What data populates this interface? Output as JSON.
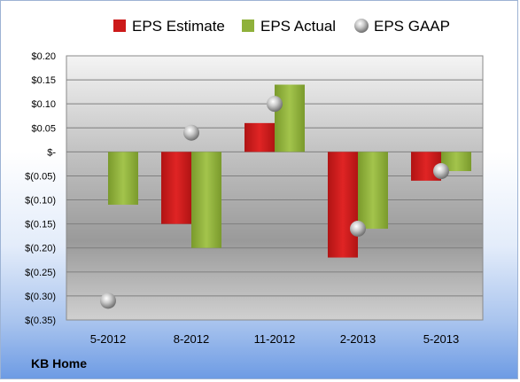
{
  "company": "KB Home",
  "chart_data": {
    "type": "bar",
    "categories": [
      "5-2012",
      "8-2012",
      "11-2012",
      "2-2013",
      "5-2013"
    ],
    "series": [
      {
        "name": "EPS Estimate",
        "kind": "bar",
        "color": "#cc1a1a",
        "values": [
          null,
          -0.15,
          0.06,
          -0.22,
          -0.06
        ]
      },
      {
        "name": "EPS Actual",
        "kind": "bar",
        "color": "#8fb13b",
        "values": [
          -0.11,
          -0.2,
          0.14,
          -0.16,
          -0.04
        ]
      },
      {
        "name": "EPS GAAP",
        "kind": "marker",
        "color": "#b9b9b9",
        "values": [
          -0.31,
          0.04,
          0.1,
          -0.16,
          -0.04
        ]
      }
    ],
    "y_ticks": [
      {
        "value": 0.2,
        "label": "$0.20"
      },
      {
        "value": 0.15,
        "label": "$0.15"
      },
      {
        "value": 0.1,
        "label": "$0.10"
      },
      {
        "value": 0.05,
        "label": "$0.05"
      },
      {
        "value": 0,
        "label": "$-"
      },
      {
        "value": -0.05,
        "label": "$(0.05)"
      },
      {
        "value": -0.1,
        "label": "$(0.10)"
      },
      {
        "value": -0.15,
        "label": "$(0.15)"
      },
      {
        "value": -0.2,
        "label": "$(0.20)"
      },
      {
        "value": -0.25,
        "label": "$(0.25)"
      },
      {
        "value": -0.3,
        "label": "$(0.30)"
      },
      {
        "value": -0.35,
        "label": "$(0.35)"
      }
    ],
    "ylim": [
      -0.35,
      0.2
    ],
    "grid": true,
    "legend_position": "top"
  }
}
